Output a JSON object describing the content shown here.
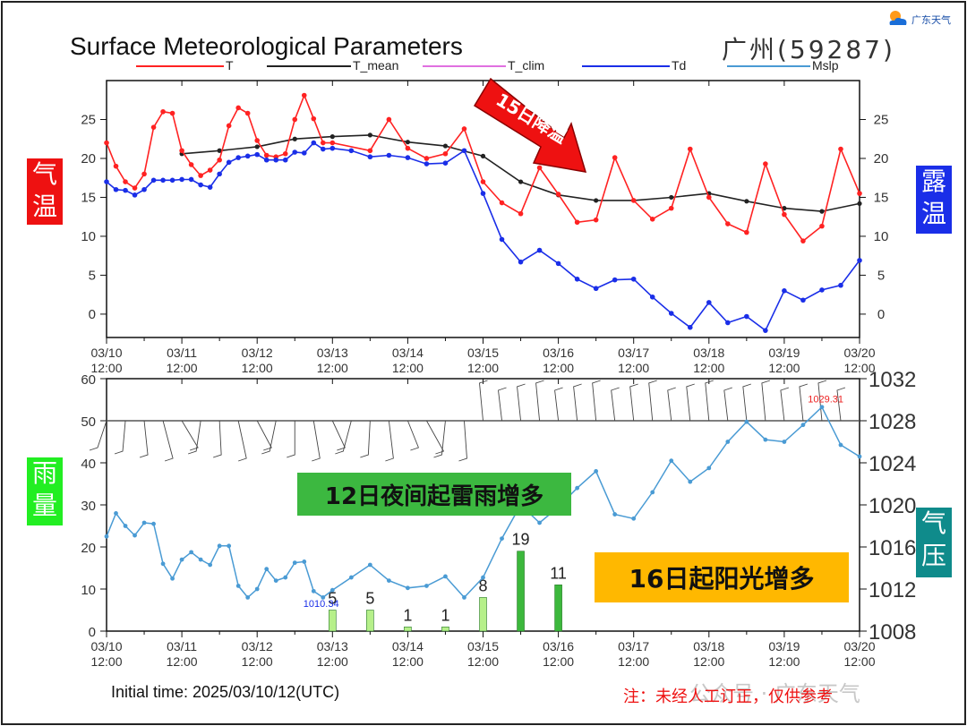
{
  "header": {
    "title": "Surface Meteorological Parameters",
    "station": "广州(59287)",
    "logo_text": "广东天气"
  },
  "side_labels": {
    "temp": [
      "气",
      "温"
    ],
    "dew": [
      "露",
      "温"
    ],
    "rain": [
      "雨",
      "量"
    ],
    "pressure": [
      "气",
      "压"
    ]
  },
  "banners": {
    "arrow": "15日降温",
    "thunder": "12日夜间起雷雨增多",
    "sunny": "16日起阳光增多"
  },
  "footer": {
    "initial_time": "Initial time: 2025/03/10/12(UTC)",
    "note": "注：未经人工订正，仅供参考",
    "watermark": "公众号 · 广东天气"
  },
  "colors": {
    "T": "#ff2222",
    "T_mean": "#222222",
    "T_clim": "#e070e0",
    "Td": "#1a2ee8",
    "Mslp": "#4a9bd4",
    "rain_light": "#b6f08a",
    "rain_dark": "#3cb83c",
    "thunder_banner": "#3cb840",
    "sunny_banner": "#ffb800",
    "arrow": "#ee1111"
  },
  "chart_data": [
    {
      "type": "line",
      "title": "Surface Meteorological Parameters",
      "x_ticks": [
        "03/10",
        "03/11",
        "03/12",
        "03/13",
        "03/14",
        "03/15",
        "03/16",
        "03/17",
        "03/18",
        "03/19",
        "03/20"
      ],
      "x_tick_time": "12:00",
      "xlim": [
        0,
        10
      ],
      "ylim": [
        -3,
        30
      ],
      "y_ticks": [
        0,
        5,
        10,
        15,
        20,
        25
      ],
      "legend_labels": [
        "T",
        "T_mean",
        "T_clim",
        "Td",
        "Mslp"
      ],
      "series": [
        {
          "name": "T",
          "x": [
            0,
            0.125,
            0.25,
            0.375,
            0.5,
            0.625,
            0.75,
            0.875,
            1,
            1.125,
            1.25,
            1.375,
            1.5,
            1.625,
            1.75,
            1.875,
            2,
            2.125,
            2.25,
            2.375,
            2.5,
            2.625,
            2.75,
            2.875,
            3,
            3.5,
            3.75,
            4,
            4.25,
            4.5,
            4.75,
            5,
            5.25,
            5.5,
            5.75,
            6,
            6.25,
            6.5,
            6.75,
            7,
            7.25,
            7.5,
            7.75,
            8,
            8.25,
            8.5,
            8.75,
            9,
            9.25,
            9.5,
            9.75,
            10
          ],
          "values": [
            22,
            19,
            17,
            16.2,
            18,
            24,
            26,
            25.8,
            21,
            19.2,
            17.8,
            18.5,
            19.8,
            24.2,
            26.5,
            25.8,
            22.3,
            20.4,
            20.2,
            20.6,
            25,
            28.1,
            25.1,
            22,
            22,
            21,
            25,
            21.3,
            20,
            20.6,
            23.8,
            17,
            14.3,
            12.9,
            18.8,
            15.4,
            11.8,
            12.1,
            20.1,
            14.6,
            12.2,
            13.6,
            21.2,
            15,
            11.6,
            10.5,
            19.3,
            12.8,
            9.4,
            11.3,
            21.2,
            15.5
          ]
        },
        {
          "name": "T_mean",
          "x": [
            1,
            1.5,
            2,
            2.5,
            3,
            3.5,
            4,
            4.5,
            5,
            5.5,
            6,
            6.5,
            7,
            7.5,
            8,
            8.5,
            9,
            9.5,
            10
          ],
          "values": [
            20.6,
            21,
            21.5,
            22.5,
            22.8,
            23,
            22.1,
            21.6,
            20.3,
            17,
            15.3,
            14.6,
            14.6,
            15,
            15.5,
            14.5,
            13.6,
            13.2,
            14.2
          ]
        },
        {
          "name": "Td",
          "x": [
            0,
            0.125,
            0.25,
            0.375,
            0.5,
            0.625,
            0.75,
            0.875,
            1,
            1.125,
            1.25,
            1.375,
            1.5,
            1.625,
            1.75,
            1.875,
            2,
            2.125,
            2.25,
            2.375,
            2.5,
            2.625,
            2.75,
            2.875,
            3,
            3.25,
            3.5,
            3.75,
            4,
            4.25,
            4.5,
            4.75,
            5,
            5.25,
            5.5,
            5.75,
            6,
            6.25,
            6.5,
            6.75,
            7,
            7.25,
            7.5,
            7.75,
            8,
            8.25,
            8.5,
            8.75,
            9,
            9.25,
            9.5,
            9.75,
            10
          ],
          "values": [
            17,
            16,
            15.9,
            15.3,
            16,
            17.2,
            17.2,
            17.2,
            17.3,
            17.3,
            16.6,
            16.3,
            18,
            19.5,
            20.1,
            20.3,
            20.5,
            19.8,
            19.8,
            19.8,
            20.8,
            20.7,
            22,
            21.2,
            21.3,
            21,
            20.2,
            20.4,
            20.1,
            19.3,
            19.4,
            21,
            15.5,
            9.6,
            6.7,
            8.2,
            6.5,
            4.5,
            3.3,
            4.4,
            4.5,
            2.2,
            0.1,
            -1.7,
            1.5,
            -1.1,
            -0.3,
            -2.1,
            3,
            1.8,
            3.1,
            3.7,
            6.9
          ]
        }
      ]
    },
    {
      "type": "bar",
      "x_ticks": [
        "03/10",
        "03/11",
        "03/12",
        "03/13",
        "03/14",
        "03/15",
        "03/16",
        "03/17",
        "03/18",
        "03/19",
        "03/20"
      ],
      "x_tick_time": "12:00",
      "xlim": [
        0,
        10
      ],
      "ylim": [
        0,
        60
      ],
      "y_ticks": [
        0,
        10,
        20,
        30,
        40,
        50,
        60
      ],
      "series": [
        {
          "name": "Rain",
          "x": [
            3,
            3.5,
            4,
            4.5,
            5,
            5.5,
            6
          ],
          "values": [
            5,
            5,
            1,
            1,
            8,
            19,
            11
          ],
          "labels": [
            "5",
            "5",
            "1",
            "1",
            "8",
            "19",
            "11"
          ]
        }
      ]
    },
    {
      "type": "line",
      "ylim": [
        1008,
        1032
      ],
      "y_ticks": [
        1008,
        1012,
        1016,
        1020,
        1024,
        1028,
        1032
      ],
      "annotations": [
        "1010.34",
        "1029.31"
      ],
      "series": [
        {
          "name": "Mslp",
          "x": [
            0,
            0.125,
            0.25,
            0.375,
            0.5,
            0.625,
            0.75,
            0.875,
            1,
            1.125,
            1.25,
            1.375,
            1.5,
            1.625,
            1.75,
            1.875,
            2,
            2.125,
            2.25,
            2.375,
            2.5,
            2.625,
            2.75,
            2.875,
            3,
            3.25,
            3.5,
            3.75,
            4,
            4.25,
            4.5,
            4.75,
            5,
            5.25,
            5.5,
            5.75,
            6,
            6.25,
            6.5,
            6.75,
            7,
            7.25,
            7.5,
            7.75,
            8,
            8.25,
            8.5,
            8.75,
            9,
            9.25,
            9.5,
            9.75,
            10
          ],
          "values": [
            1017,
            1019.2,
            1018,
            1017.1,
            1018.3,
            1018.2,
            1014.4,
            1013,
            1014.8,
            1015.5,
            1014.8,
            1014.3,
            1016.1,
            1016.1,
            1012.3,
            1011.2,
            1012,
            1013.9,
            1012.8,
            1013.1,
            1014.5,
            1014.6,
            1011.8,
            1011.2,
            1011.9,
            1013.1,
            1014.3,
            1012.8,
            1012.1,
            1012.3,
            1013.2,
            1011.2,
            1013.1,
            1016.8,
            1020,
            1018.3,
            1019.8,
            1021.6,
            1023.2,
            1019.1,
            1018.7,
            1021.2,
            1024.2,
            1022.2,
            1023.5,
            1026,
            1027.9,
            1026.2,
            1026,
            1027.6,
            1029.3,
            1025.7,
            1024.6
          ]
        }
      ]
    }
  ]
}
